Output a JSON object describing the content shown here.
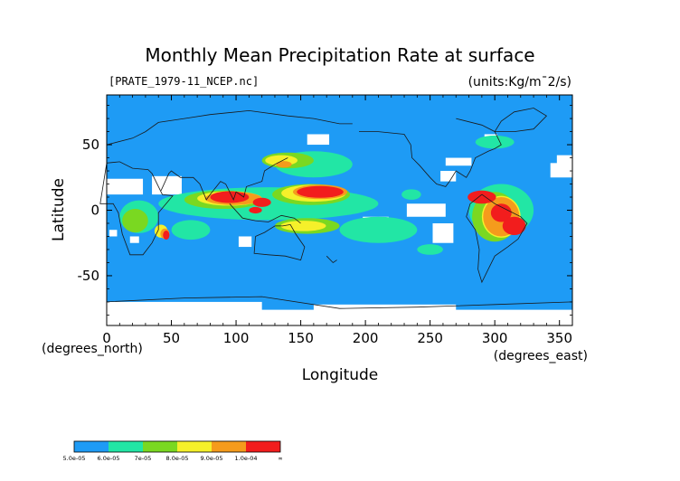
{
  "chart_data": {
    "type": "heatmap",
    "title": "Monthly Mean Precipitation Rate at surface",
    "file_label": "[PRATE_1979-11_NCEP.nc]",
    "units_label": "(units:Kg/m¯2/s)",
    "xlabel": "Longitude",
    "ylabel": "Latitude",
    "x_unit_label": "(degrees_east)",
    "y_unit_label": "(degrees_north)",
    "xlim": [
      0,
      360
    ],
    "ylim": [
      -88,
      88
    ],
    "x_ticks": [
      0,
      50,
      100,
      150,
      200,
      250,
      300,
      350
    ],
    "y_ticks": [
      -50,
      0,
      50
    ],
    "grid": false,
    "colorbar": {
      "labels": [
        "5.0e-05",
        "6.0e-05",
        "7e-05",
        "8.0e-05",
        "9.0e-05",
        "1.0e-04",
        "∞"
      ],
      "colors": [
        "#1e9bf5",
        "#22e6a5",
        "#7ad821",
        "#f5f02a",
        "#f59b1c",
        "#f21d1d"
      ]
    },
    "regions": [
      {
        "level": "high",
        "lon": [
          70,
          135
        ],
        "lat": [
          5,
          15
        ]
      },
      {
        "level": "high",
        "lon": [
          150,
          195
        ],
        "lat": [
          8,
          20
        ]
      },
      {
        "level": "high",
        "lon": [
          275,
          320
        ],
        "lat": [
          -25,
          15
        ]
      },
      {
        "level": "medium",
        "lon": [
          50,
          210
        ],
        "lat": [
          -20,
          20
        ]
      },
      {
        "level": "medium",
        "lon": [
          10,
          40
        ],
        "lat": [
          -15,
          5
        ]
      },
      {
        "level": "medium",
        "lon": [
          270,
          330
        ],
        "lat": [
          -30,
          20
        ]
      },
      {
        "level": "medium",
        "lon": [
          120,
          185
        ],
        "lat": [
          30,
          45
        ]
      },
      {
        "level": "low",
        "lon": [
          0,
          360
        ],
        "lat": [
          -88,
          88
        ]
      },
      {
        "level": "below",
        "lon": [
          0,
          60
        ],
        "lat": [
          10,
          30
        ]
      },
      {
        "level": "below",
        "lon": [
          225,
          275
        ],
        "lat": [
          -25,
          20
        ]
      },
      {
        "level": "below",
        "lon": [
          0,
          360
        ],
        "lat": [
          -88,
          -75
        ]
      }
    ]
  }
}
